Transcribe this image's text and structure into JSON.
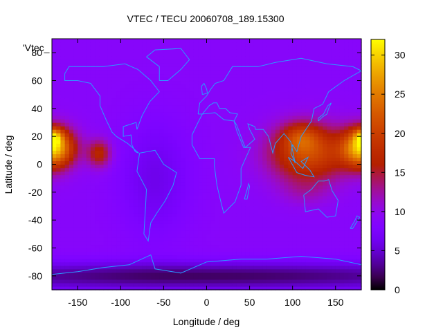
{
  "chart_data": {
    "type": "heatmap",
    "title": "VTEC / TECU 20060708_189.15300",
    "xlabel": "Longitude / deg",
    "ylabel": "Latitude / deg",
    "key_label": "'Vtec_",
    "xlim": [
      -180,
      180
    ],
    "ylim": [
      -90,
      90
    ],
    "x_ticks": [
      -150,
      -100,
      -50,
      0,
      50,
      100,
      150
    ],
    "y_ticks": [
      -80,
      -60,
      -40,
      -20,
      0,
      20,
      40,
      60,
      80
    ],
    "colorbar": {
      "range": [
        0,
        32
      ],
      "ticks": [
        0,
        5,
        10,
        15,
        20,
        25,
        30
      ],
      "colormap": "gnuplot-pm3d"
    },
    "grid": false,
    "field": {
      "lon_step": 5,
      "lat_step": 2.5,
      "background": 9,
      "components": [
        {
          "lon": -178,
          "lat": 12,
          "value": 20,
          "lon_width": 24,
          "lat_width": 14
        },
        {
          "lon": -178,
          "lat": 20,
          "value": 9,
          "lon_width": 10,
          "lat_width": 6
        },
        {
          "lon": -125,
          "lat": 8,
          "value": 8,
          "lon_width": 14,
          "lat_width": 10
        },
        {
          "lon": 118,
          "lat": 8,
          "value": 12,
          "lon_width": 45,
          "lat_width": 20
        },
        {
          "lon": 110,
          "lat": 20,
          "value": 6,
          "lon_width": 22,
          "lat_width": 10
        },
        {
          "lon": 115,
          "lat": -20,
          "value": 2,
          "lon_width": 30,
          "lat_width": 10
        },
        {
          "lon": -60,
          "lat": -10,
          "value": -3,
          "lon_width": 40,
          "lat_width": 40
        },
        {
          "lon": 0,
          "lat": -80,
          "value": -7,
          "lon_width": 400,
          "lat_width": 10
        }
      ]
    },
    "outlines_color": "#2a9bff"
  }
}
